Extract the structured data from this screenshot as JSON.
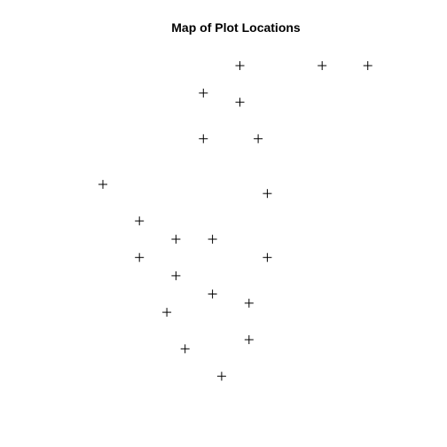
{
  "chart_data": {
    "type": "scatter",
    "title": "Map of Plot Locations",
    "xlabel": "",
    "ylabel": "",
    "marker": "plus",
    "color": "#000000",
    "axes_visible": false,
    "grid": false,
    "legend": "none",
    "xlim": [
      0,
      30
    ],
    "ylim": [
      0,
      35
    ],
    "points": [
      {
        "x": 15,
        "y": 33
      },
      {
        "x": 24,
        "y": 33
      },
      {
        "x": 29,
        "y": 33
      },
      {
        "x": 11,
        "y": 30
      },
      {
        "x": 15,
        "y": 29
      },
      {
        "x": 11,
        "y": 25
      },
      {
        "x": 17,
        "y": 25
      },
      {
        "x": 0,
        "y": 20
      },
      {
        "x": 18,
        "y": 19
      },
      {
        "x": 4,
        "y": 16
      },
      {
        "x": 8,
        "y": 14
      },
      {
        "x": 12,
        "y": 14
      },
      {
        "x": 4,
        "y": 12
      },
      {
        "x": 18,
        "y": 12
      },
      {
        "x": 8,
        "y": 10
      },
      {
        "x": 12,
        "y": 8
      },
      {
        "x": 16,
        "y": 7
      },
      {
        "x": 7,
        "y": 6
      },
      {
        "x": 16,
        "y": 3
      },
      {
        "x": 9,
        "y": 2
      },
      {
        "x": 13,
        "y": -1
      }
    ]
  }
}
